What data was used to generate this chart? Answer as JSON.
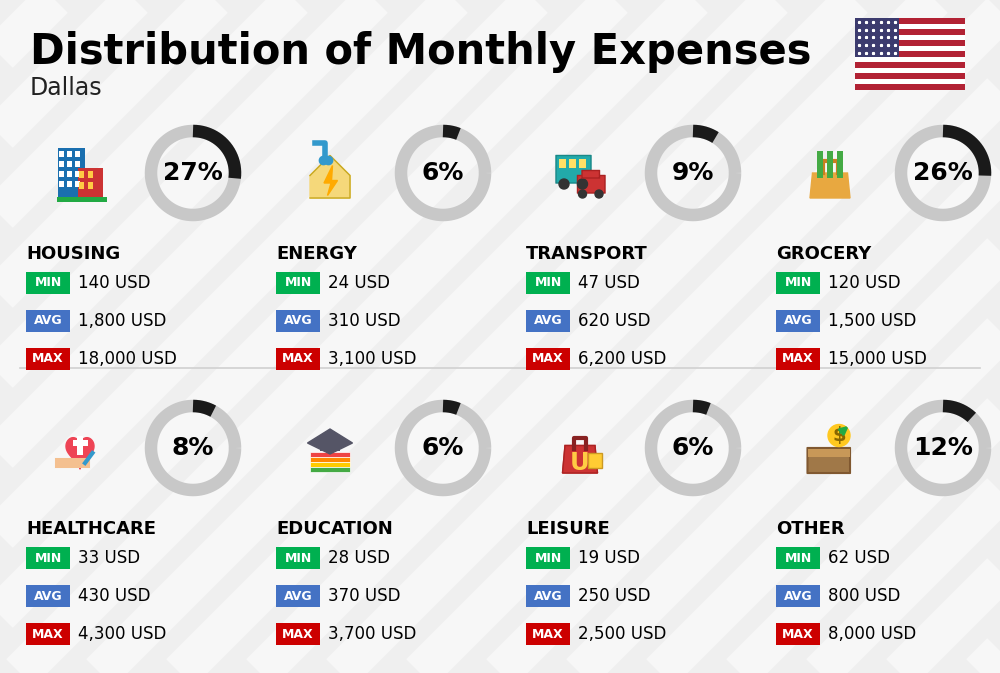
{
  "title": "Distribution of Monthly Expenses",
  "subtitle": "Dallas",
  "bg_color": "#efefef",
  "categories": [
    {
      "name": "HOUSING",
      "pct": 27,
      "row": 0,
      "col": 0,
      "min_val": "140 USD",
      "avg_val": "1,800 USD",
      "max_val": "18,000 USD"
    },
    {
      "name": "ENERGY",
      "pct": 6,
      "row": 0,
      "col": 1,
      "min_val": "24 USD",
      "avg_val": "310 USD",
      "max_val": "3,100 USD"
    },
    {
      "name": "TRANSPORT",
      "pct": 9,
      "row": 0,
      "col": 2,
      "min_val": "47 USD",
      "avg_val": "620 USD",
      "max_val": "6,200 USD"
    },
    {
      "name": "GROCERY",
      "pct": 26,
      "row": 0,
      "col": 3,
      "min_val": "120 USD",
      "avg_val": "1,500 USD",
      "max_val": "15,000 USD"
    },
    {
      "name": "HEALTHCARE",
      "pct": 8,
      "row": 1,
      "col": 0,
      "min_val": "33 USD",
      "avg_val": "430 USD",
      "max_val": "4,300 USD"
    },
    {
      "name": "EDUCATION",
      "pct": 6,
      "row": 1,
      "col": 1,
      "min_val": "28 USD",
      "avg_val": "370 USD",
      "max_val": "3,700 USD"
    },
    {
      "name": "LEISURE",
      "pct": 6,
      "row": 1,
      "col": 2,
      "min_val": "19 USD",
      "avg_val": "250 USD",
      "max_val": "2,500 USD"
    },
    {
      "name": "OTHER",
      "pct": 12,
      "row": 1,
      "col": 3,
      "min_val": "62 USD",
      "avg_val": "800 USD",
      "max_val": "8,000 USD"
    }
  ],
  "min_color": "#00b050",
  "avg_color": "#4472c4",
  "max_color": "#cc0000",
  "donut_bg": "#c8c8c8",
  "donut_fg": "#1a1a1a",
  "title_fontsize": 30,
  "subtitle_fontsize": 17,
  "cat_fontsize": 13,
  "val_fontsize": 12,
  "pct_fontsize": 18,
  "badge_label_fontsize": 9
}
